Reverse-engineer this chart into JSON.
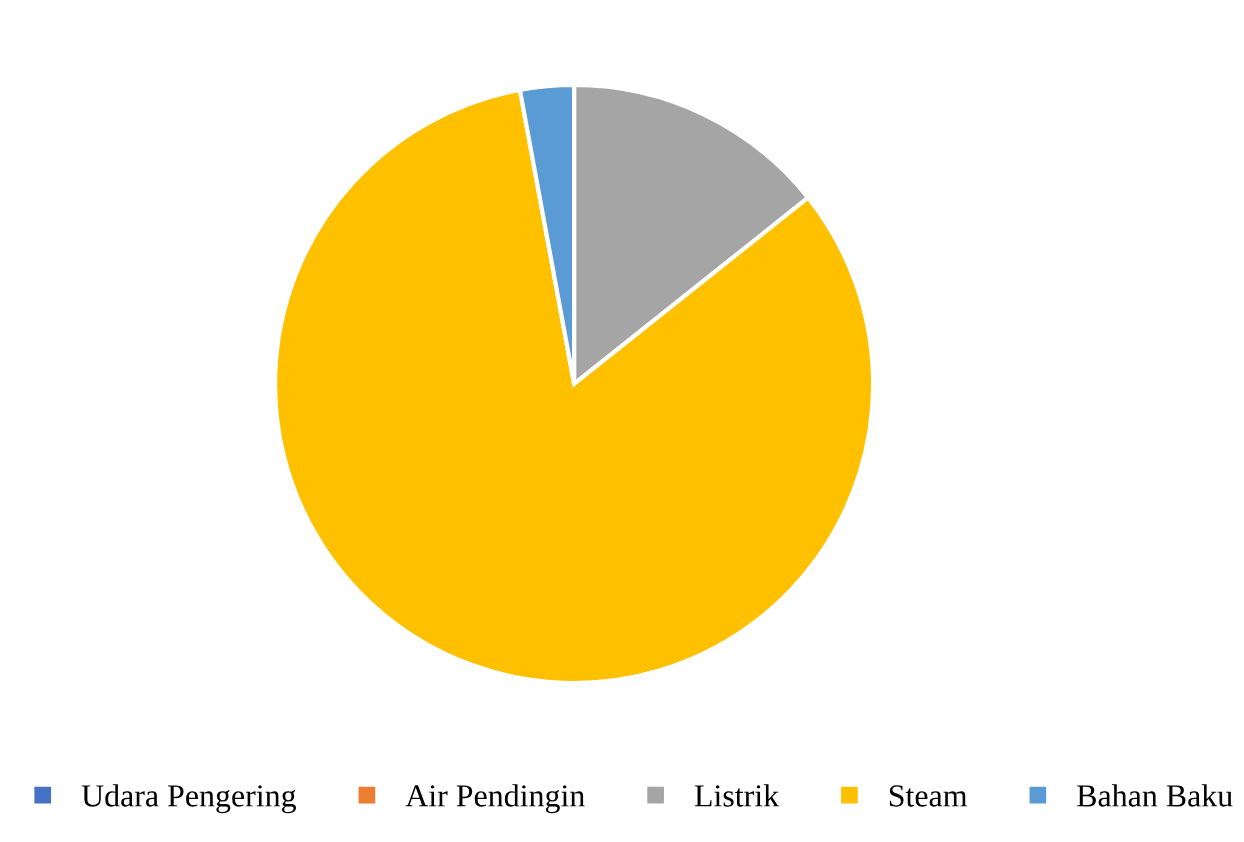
{
  "chart_data": {
    "type": "pie",
    "categories": [
      "Udara Pengering",
      "Air Pendingin",
      "Listrik",
      "Steam",
      "Bahan Baku"
    ],
    "values": [
      0,
      0,
      14.3,
      82.8,
      2.9
    ],
    "colors": [
      "#4472c4",
      "#ed7d31",
      "#a5a5a5",
      "#ffc000",
      "#5b9bd5"
    ],
    "legend": "bottom"
  }
}
